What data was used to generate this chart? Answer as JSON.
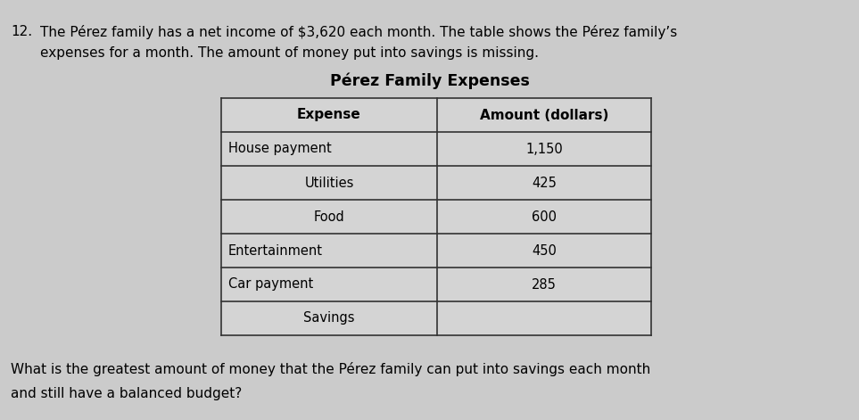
{
  "question_number": "12.",
  "intro_text_line1": "The Pérez family has a net income of $3,620 each month. The table shows the Pérez family’s",
  "intro_text_line2": "expenses for a month. The amount of money put into savings is missing.",
  "table_title": "Pérez Family Expenses",
  "col_headers": [
    "Expense",
    "Amount (dollars)"
  ],
  "rows": [
    [
      "House payment",
      "1,150"
    ],
    [
      "Utilities",
      "425"
    ],
    [
      "Food",
      "600"
    ],
    [
      "Entertainment",
      "450"
    ],
    [
      "Car payment",
      "285"
    ],
    [
      "Savings",
      ""
    ]
  ],
  "footer_line1": "What is the greatest amount of money that the Pérez family can put into savings each month",
  "footer_line2": "and still have a balanced budget?",
  "bg_color": "#cbcbcb",
  "table_bg": "#d4d4d4",
  "text_color": "#000000",
  "border_color": "#333333",
  "fig_width": 9.63,
  "fig_height": 4.71,
  "dpi": 100
}
